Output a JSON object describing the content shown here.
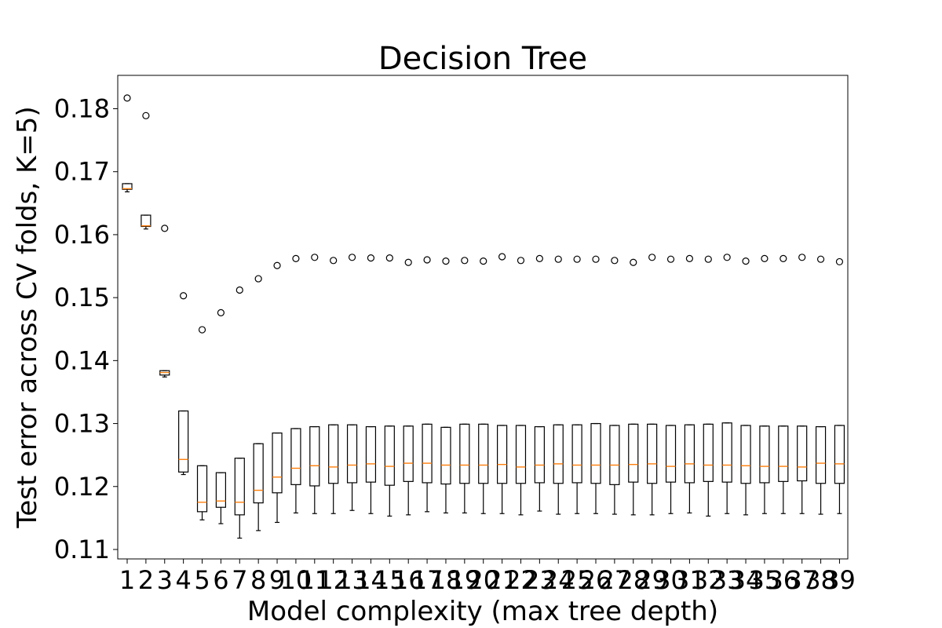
{
  "chart_data": {
    "type": "boxplot",
    "title": "Decision Tree",
    "xlabel": "Model complexity (max tree depth)",
    "ylabel": "Test error across CV folds, K=5)",
    "ylim": [
      0.1085,
      0.1853
    ],
    "yticks": [
      0.11,
      0.12,
      0.13,
      0.14,
      0.15,
      0.16,
      0.17,
      0.18
    ],
    "ytick_labels": [
      "0.11",
      "0.12",
      "0.13",
      "0.14",
      "0.15",
      "0.16",
      "0.17",
      "0.18"
    ],
    "grid": false,
    "categories": [
      "1",
      "2",
      "3",
      "4",
      "5",
      "6",
      "7",
      "8",
      "9",
      "10",
      "11",
      "12",
      "13",
      "14",
      "15",
      "16",
      "17",
      "18",
      "19",
      "20",
      "21",
      "22",
      "23",
      "24",
      "25",
      "26",
      "27",
      "28",
      "29",
      "30",
      "31",
      "32",
      "33",
      "34",
      "35",
      "36",
      "37",
      "38",
      "39"
    ],
    "colors": {
      "box": "#000000",
      "median": "#ff7f0e",
      "flier": "#000000",
      "background": "#ffffff"
    },
    "boxes": [
      {
        "depth": "1",
        "whislo": 0.1668,
        "q1": 0.1672,
        "med": 0.1673,
        "q3": 0.1681,
        "whishi": 0.1681,
        "fliers": [
          0.1817
        ]
      },
      {
        "depth": "2",
        "whislo": 0.1609,
        "q1": 0.1613,
        "med": 0.1614,
        "q3": 0.1631,
        "whishi": 0.1631,
        "fliers": [
          0.1789
        ]
      },
      {
        "depth": "3",
        "whislo": 0.1374,
        "q1": 0.1377,
        "med": 0.1381,
        "q3": 0.1384,
        "whishi": 0.1384,
        "fliers": [
          0.161
        ]
      },
      {
        "depth": "4",
        "whislo": 0.1219,
        "q1": 0.1223,
        "med": 0.1243,
        "q3": 0.132,
        "whishi": 0.132,
        "fliers": [
          0.1503
        ]
      },
      {
        "depth": "5",
        "whislo": 0.1147,
        "q1": 0.116,
        "med": 0.1175,
        "q3": 0.1233,
        "whishi": 0.1233,
        "fliers": [
          0.1449
        ]
      },
      {
        "depth": "6",
        "whislo": 0.1141,
        "q1": 0.1167,
        "med": 0.1177,
        "q3": 0.1222,
        "whishi": 0.1222,
        "fliers": [
          0.1476
        ]
      },
      {
        "depth": "7",
        "whislo": 0.1118,
        "q1": 0.1155,
        "med": 0.1175,
        "q3": 0.1245,
        "whishi": 0.1245,
        "fliers": [
          0.1512
        ]
      },
      {
        "depth": "8",
        "whislo": 0.113,
        "q1": 0.1174,
        "med": 0.1194,
        "q3": 0.1268,
        "whishi": 0.1268,
        "fliers": [
          0.153
        ]
      },
      {
        "depth": "9",
        "whislo": 0.1143,
        "q1": 0.119,
        "med": 0.1215,
        "q3": 0.1285,
        "whishi": 0.1285,
        "fliers": [
          0.1551
        ]
      },
      {
        "depth": "10",
        "whislo": 0.1158,
        "q1": 0.1203,
        "med": 0.1229,
        "q3": 0.1292,
        "whishi": 0.1292,
        "fliers": [
          0.1562
        ]
      },
      {
        "depth": "11",
        "whislo": 0.1157,
        "q1": 0.1201,
        "med": 0.1233,
        "q3": 0.1295,
        "whishi": 0.1295,
        "fliers": [
          0.1564
        ]
      },
      {
        "depth": "12",
        "whislo": 0.1157,
        "q1": 0.1205,
        "med": 0.1231,
        "q3": 0.1298,
        "whishi": 0.1298,
        "fliers": [
          0.1559
        ]
      },
      {
        "depth": "13",
        "whislo": 0.1162,
        "q1": 0.1206,
        "med": 0.1234,
        "q3": 0.1298,
        "whishi": 0.1298,
        "fliers": [
          0.1564
        ]
      },
      {
        "depth": "14",
        "whislo": 0.1157,
        "q1": 0.1207,
        "med": 0.1236,
        "q3": 0.1295,
        "whishi": 0.1295,
        "fliers": [
          0.1563
        ]
      },
      {
        "depth": "15",
        "whislo": 0.1153,
        "q1": 0.1202,
        "med": 0.1232,
        "q3": 0.1296,
        "whishi": 0.1296,
        "fliers": [
          0.1563
        ]
      },
      {
        "depth": "16",
        "whislo": 0.1155,
        "q1": 0.1208,
        "med": 0.1237,
        "q3": 0.1296,
        "whishi": 0.1296,
        "fliers": [
          0.1556
        ]
      },
      {
        "depth": "17",
        "whislo": 0.116,
        "q1": 0.1206,
        "med": 0.1237,
        "q3": 0.1299,
        "whishi": 0.1299,
        "fliers": [
          0.156
        ]
      },
      {
        "depth": "18",
        "whislo": 0.1158,
        "q1": 0.1204,
        "med": 0.1234,
        "q3": 0.1294,
        "whishi": 0.1294,
        "fliers": [
          0.1558
        ]
      },
      {
        "depth": "19",
        "whislo": 0.1158,
        "q1": 0.1205,
        "med": 0.1234,
        "q3": 0.1299,
        "whishi": 0.1299,
        "fliers": [
          0.1559
        ]
      },
      {
        "depth": "20",
        "whislo": 0.1157,
        "q1": 0.1205,
        "med": 0.1234,
        "q3": 0.1299,
        "whishi": 0.1299,
        "fliers": [
          0.1558
        ]
      },
      {
        "depth": "21",
        "whislo": 0.1157,
        "q1": 0.1205,
        "med": 0.1235,
        "q3": 0.1297,
        "whishi": 0.1297,
        "fliers": [
          0.1565
        ]
      },
      {
        "depth": "22",
        "whislo": 0.1155,
        "q1": 0.1205,
        "med": 0.1231,
        "q3": 0.1297,
        "whishi": 0.1297,
        "fliers": [
          0.1559
        ]
      },
      {
        "depth": "23",
        "whislo": 0.1161,
        "q1": 0.1206,
        "med": 0.1234,
        "q3": 0.1295,
        "whishi": 0.1295,
        "fliers": [
          0.1562
        ]
      },
      {
        "depth": "24",
        "whislo": 0.1156,
        "q1": 0.1205,
        "med": 0.1236,
        "q3": 0.1298,
        "whishi": 0.1298,
        "fliers": [
          0.1561
        ]
      },
      {
        "depth": "25",
        "whislo": 0.1157,
        "q1": 0.1206,
        "med": 0.1234,
        "q3": 0.1298,
        "whishi": 0.1298,
        "fliers": [
          0.1561
        ]
      },
      {
        "depth": "26",
        "whislo": 0.1157,
        "q1": 0.1205,
        "med": 0.1234,
        "q3": 0.13,
        "whishi": 0.13,
        "fliers": [
          0.1561
        ]
      },
      {
        "depth": "27",
        "whislo": 0.1156,
        "q1": 0.1203,
        "med": 0.1234,
        "q3": 0.1297,
        "whishi": 0.1297,
        "fliers": [
          0.1559
        ]
      },
      {
        "depth": "28",
        "whislo": 0.1155,
        "q1": 0.1207,
        "med": 0.1235,
        "q3": 0.1299,
        "whishi": 0.1299,
        "fliers": [
          0.1556
        ]
      },
      {
        "depth": "29",
        "whislo": 0.1155,
        "q1": 0.1205,
        "med": 0.1236,
        "q3": 0.1299,
        "whishi": 0.1299,
        "fliers": [
          0.1564
        ]
      },
      {
        "depth": "30",
        "whislo": 0.1157,
        "q1": 0.1207,
        "med": 0.1232,
        "q3": 0.1297,
        "whishi": 0.1297,
        "fliers": [
          0.1561
        ]
      },
      {
        "depth": "31",
        "whislo": 0.1158,
        "q1": 0.1206,
        "med": 0.1236,
        "q3": 0.1298,
        "whishi": 0.1298,
        "fliers": [
          0.1562
        ]
      },
      {
        "depth": "32",
        "whislo": 0.1153,
        "q1": 0.1208,
        "med": 0.1234,
        "q3": 0.1299,
        "whishi": 0.1299,
        "fliers": [
          0.1561
        ]
      },
      {
        "depth": "33",
        "whislo": 0.1157,
        "q1": 0.1207,
        "med": 0.1234,
        "q3": 0.1301,
        "whishi": 0.1301,
        "fliers": [
          0.1564
        ]
      },
      {
        "depth": "34",
        "whislo": 0.1155,
        "q1": 0.1205,
        "med": 0.1233,
        "q3": 0.1297,
        "whishi": 0.1297,
        "fliers": [
          0.1558
        ]
      },
      {
        "depth": "35",
        "whislo": 0.1157,
        "q1": 0.1206,
        "med": 0.1232,
        "q3": 0.1296,
        "whishi": 0.1296,
        "fliers": [
          0.1562
        ]
      },
      {
        "depth": "36",
        "whislo": 0.1157,
        "q1": 0.1208,
        "med": 0.1232,
        "q3": 0.1296,
        "whishi": 0.1296,
        "fliers": [
          0.1562
        ]
      },
      {
        "depth": "37",
        "whislo": 0.1157,
        "q1": 0.1209,
        "med": 0.1231,
        "q3": 0.1296,
        "whishi": 0.1296,
        "fliers": [
          0.1564
        ]
      },
      {
        "depth": "38",
        "whislo": 0.1156,
        "q1": 0.1205,
        "med": 0.1237,
        "q3": 0.1295,
        "whishi": 0.1295,
        "fliers": [
          0.1561
        ]
      },
      {
        "depth": "39",
        "whislo": 0.1157,
        "q1": 0.1205,
        "med": 0.1236,
        "q3": 0.1297,
        "whishi": 0.1297,
        "fliers": [
          0.1557
        ]
      }
    ]
  }
}
